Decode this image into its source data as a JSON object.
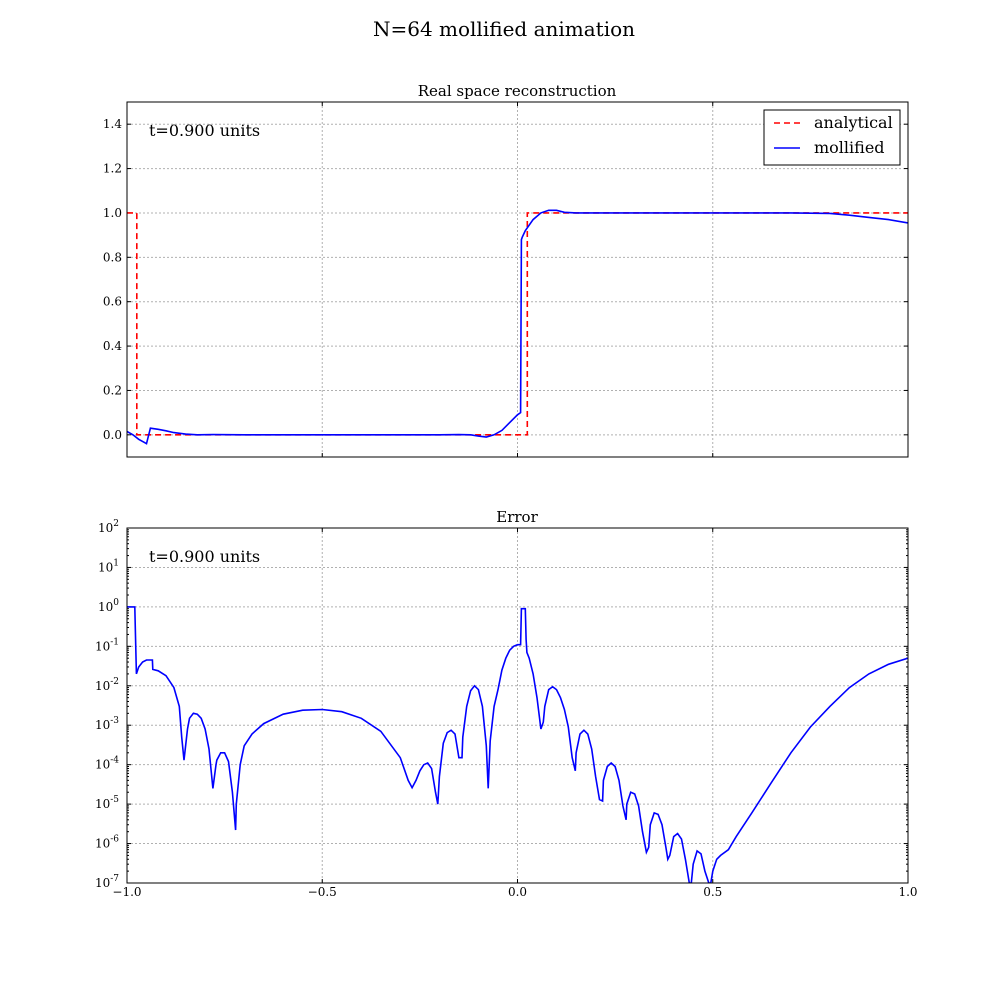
{
  "figure_title": "N=64 mollified animation",
  "chart_data": [
    {
      "type": "line",
      "title": "Real space reconstruction",
      "annotation": "t=0.900 units",
      "xlim": [
        -1.0,
        1.0
      ],
      "ylim": [
        -0.1,
        1.5
      ],
      "yticks": [
        "0.0",
        "0.2",
        "0.4",
        "0.6",
        "0.8",
        "1.0",
        "1.2",
        "1.4"
      ],
      "ytick_values": [
        0.0,
        0.2,
        0.4,
        0.6,
        0.8,
        1.0,
        1.2,
        1.4
      ],
      "xtick_values": [
        -1.0,
        -0.5,
        0.0,
        0.5,
        1.0
      ],
      "grid": true,
      "legend_placement": "top-right",
      "series": [
        {
          "name": "analytical",
          "color": "#ff0000",
          "style": "dashed",
          "x": [
            -1.0,
            -0.975,
            -0.975,
            0.025,
            0.025,
            1.0
          ],
          "y": [
            1.0,
            1.0,
            0.0,
            0.0,
            1.0,
            1.0
          ]
        },
        {
          "name": "mollified",
          "color": "#0000ff",
          "style": "solid",
          "x": [
            -1.0,
            -0.985,
            -0.97,
            -0.955,
            -0.95,
            -0.94,
            -0.92,
            -0.9,
            -0.88,
            -0.85,
            -0.82,
            -0.78,
            -0.7,
            -0.6,
            -0.5,
            -0.4,
            -0.3,
            -0.2,
            -0.15,
            -0.12,
            -0.1,
            -0.08,
            -0.06,
            -0.04,
            -0.02,
            0.0,
            0.008,
            0.01,
            0.012,
            0.02,
            0.04,
            0.06,
            0.08,
            0.1,
            0.12,
            0.15,
            0.2,
            0.3,
            0.4,
            0.5,
            0.6,
            0.7,
            0.8,
            0.85,
            0.9,
            0.95,
            1.0
          ],
          "y": [
            0.015,
            0.0,
            -0.02,
            -0.035,
            -0.04,
            0.03,
            0.025,
            0.018,
            0.01,
            0.003,
            0.0,
            0.001,
            0.0,
            0.0,
            0.0,
            0.0,
            0.0,
            0.0,
            0.001,
            0.0,
            -0.006,
            -0.01,
            0.0,
            0.02,
            0.055,
            0.09,
            0.1,
            0.88,
            0.89,
            0.92,
            0.97,
            1.0,
            1.012,
            1.012,
            1.003,
            1.0,
            1.0,
            1.0,
            1.0,
            1.0,
            1.0,
            1.0,
            0.998,
            0.99,
            0.98,
            0.97,
            0.955
          ]
        }
      ]
    },
    {
      "type": "line",
      "title": "Error",
      "annotation": "t=0.900 units",
      "yscale": "log",
      "xlim": [
        -1.0,
        1.0
      ],
      "ylim": [
        1e-07,
        100
      ],
      "yticks": [
        {
          "base": "10",
          "exp": "2",
          "value": 2
        },
        {
          "base": "10",
          "exp": "1",
          "value": 1
        },
        {
          "base": "10",
          "exp": "0",
          "value": 0
        },
        {
          "base": "10",
          "exp": "-1",
          "value": -1
        },
        {
          "base": "10",
          "exp": "-2",
          "value": -2
        },
        {
          "base": "10",
          "exp": "-3",
          "value": -3
        },
        {
          "base": "10",
          "exp": "-4",
          "value": -4
        },
        {
          "base": "10",
          "exp": "-5",
          "value": -5
        },
        {
          "base": "10",
          "exp": "-6",
          "value": -6
        },
        {
          "base": "10",
          "exp": "-7",
          "value": -7
        }
      ],
      "xticks": [
        "−1.0",
        "−0.5",
        "0.0",
        "0.5",
        "1.0"
      ],
      "xtick_values": [
        -1.0,
        -0.5,
        0.0,
        0.5,
        1.0
      ],
      "grid": true,
      "series": [
        {
          "color": "#0000ff",
          "x": [
            -1.0,
            -0.98,
            -0.976,
            -0.97,
            -0.96,
            -0.95,
            -0.935,
            -0.934,
            -0.92,
            -0.9,
            -0.88,
            -0.866,
            -0.86,
            -0.854,
            -0.845,
            -0.84,
            -0.83,
            -0.82,
            -0.81,
            -0.8,
            -0.79,
            -0.78,
            -0.772,
            -0.77,
            -0.76,
            -0.75,
            -0.74,
            -0.73,
            -0.722,
            -0.72,
            -0.71,
            -0.7,
            -0.68,
            -0.65,
            -0.6,
            -0.55,
            -0.5,
            -0.45,
            -0.4,
            -0.35,
            -0.3,
            -0.28,
            -0.27,
            -0.26,
            -0.25,
            -0.24,
            -0.23,
            -0.22,
            -0.21,
            -0.204,
            -0.2,
            -0.19,
            -0.18,
            -0.17,
            -0.16,
            -0.15,
            -0.142,
            -0.14,
            -0.13,
            -0.12,
            -0.11,
            -0.1,
            -0.09,
            -0.08,
            -0.075,
            -0.07,
            -0.06,
            -0.05,
            -0.04,
            -0.03,
            -0.02,
            -0.01,
            0.0,
            0.008,
            0.01,
            0.012,
            0.02,
            0.022,
            0.024,
            0.03,
            0.04,
            0.05,
            0.06,
            0.066,
            0.07,
            0.08,
            0.09,
            0.1,
            0.11,
            0.12,
            0.13,
            0.14,
            0.148,
            0.15,
            0.16,
            0.17,
            0.18,
            0.19,
            0.2,
            0.21,
            0.218,
            0.22,
            0.23,
            0.24,
            0.25,
            0.26,
            0.27,
            0.278,
            0.28,
            0.29,
            0.3,
            0.31,
            0.32,
            0.33,
            0.336,
            0.34,
            0.35,
            0.36,
            0.37,
            0.38,
            0.385,
            0.39,
            0.4,
            0.41,
            0.42,
            0.43,
            0.44,
            0.445,
            0.45,
            0.46,
            0.47,
            0.48,
            0.49,
            0.495,
            0.5,
            0.51,
            0.52,
            0.54,
            0.56,
            0.6,
            0.65,
            0.7,
            0.75,
            0.8,
            0.85,
            0.9,
            0.95,
            1.0
          ],
          "y": [
            1.0,
            1.0,
            0.02,
            0.03,
            0.04,
            0.045,
            0.045,
            0.026,
            0.024,
            0.018,
            0.009,
            0.003,
            0.0005,
            0.00013,
            0.0008,
            0.0015,
            0.002,
            0.0019,
            0.0015,
            0.0008,
            0.00025,
            2.5e-05,
            0.0001,
            0.00013,
            0.0002,
            0.0002,
            0.00012,
            2e-05,
            2.2e-06,
            1e-05,
            0.0001,
            0.0003,
            0.0006,
            0.0011,
            0.0019,
            0.0024,
            0.0025,
            0.0022,
            0.0015,
            0.0007,
            0.00015,
            4e-05,
            2.6e-05,
            4e-05,
            7e-05,
            0.0001,
            0.00011,
            8e-05,
            2e-05,
            1e-05,
            5e-05,
            0.00035,
            0.00065,
            0.00075,
            0.0006,
            0.00015,
            0.00015,
            0.0005,
            0.003,
            0.0075,
            0.01,
            0.008,
            0.003,
            0.0003,
            2.5e-05,
            0.0004,
            0.003,
            0.008,
            0.025,
            0.05,
            0.08,
            0.1,
            0.11,
            0.11,
            0.9,
            0.9,
            0.9,
            0.15,
            0.07,
            0.05,
            0.02,
            0.005,
            0.0008,
            0.0012,
            0.003,
            0.008,
            0.0095,
            0.008,
            0.005,
            0.0025,
            0.0009,
            0.00015,
            7e-05,
            0.0002,
            0.0006,
            0.00075,
            0.0006,
            0.00025,
            5e-05,
            1.3e-05,
            1.2e-05,
            4e-05,
            9e-05,
            0.00011,
            9e-05,
            4e-05,
            9e-06,
            4e-06,
            1e-05,
            2e-05,
            1.8e-05,
            9e-06,
            2e-06,
            6e-07,
            8e-07,
            3e-06,
            6e-06,
            5.5e-06,
            3e-06,
            8e-07,
            4e-07,
            5e-07,
            1.5e-06,
            1.8e-06,
            1.3e-06,
            4e-07,
            1e-07,
            1e-07,
            3e-07,
            6.5e-07,
            5.5e-07,
            2e-07,
            1e-07,
            1e-07,
            2e-07,
            4e-07,
            5e-07,
            7e-07,
            1.5e-06,
            6e-06,
            3.5e-05,
            0.0002,
            0.0009,
            0.003,
            0.009,
            0.02,
            0.035,
            0.05
          ]
        }
      ]
    }
  ]
}
